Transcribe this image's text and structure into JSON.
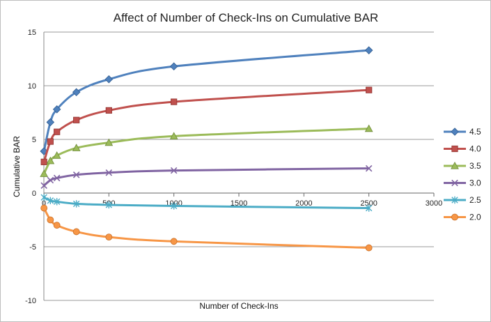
{
  "chart_data": {
    "type": "scatter",
    "title": "Affect of Number of Check-Ins on Cumulative BAR",
    "xlabel": "Number of Check-Ins",
    "ylabel": "Cumulative BAR",
    "xlim": [
      0,
      3000
    ],
    "ylim": [
      -10,
      15
    ],
    "xticks": [
      0,
      500,
      1000,
      1500,
      2000,
      2500,
      3000
    ],
    "yticks": [
      -10,
      -5,
      0,
      5,
      10,
      15
    ],
    "grid": "horizontal",
    "legend_position": "right",
    "smooth_lines": true,
    "series": [
      {
        "name": "4.5",
        "color": "#4f81bd",
        "marker": "diamond",
        "x": [
          1,
          50,
          100,
          250,
          500,
          1000,
          2500
        ],
        "y": [
          3.9,
          6.6,
          7.8,
          9.4,
          10.6,
          11.8,
          13.3
        ]
      },
      {
        "name": "4.0",
        "color": "#c0504d",
        "marker": "square",
        "x": [
          1,
          50,
          100,
          250,
          500,
          1000,
          2500
        ],
        "y": [
          2.9,
          4.8,
          5.7,
          6.8,
          7.7,
          8.5,
          9.6
        ]
      },
      {
        "name": "3.5",
        "color": "#9bbb59",
        "marker": "triangle",
        "x": [
          1,
          50,
          100,
          250,
          500,
          1000,
          2500
        ],
        "y": [
          1.8,
          3.0,
          3.5,
          4.2,
          4.7,
          5.3,
          6.0
        ]
      },
      {
        "name": "3.0",
        "color": "#8064a2",
        "marker": "x",
        "x": [
          1,
          50,
          100,
          250,
          500,
          1000,
          2500
        ],
        "y": [
          0.7,
          1.2,
          1.4,
          1.7,
          1.9,
          2.1,
          2.3
        ]
      },
      {
        "name": "2.5",
        "color": "#4bacc6",
        "marker": "star",
        "x": [
          1,
          50,
          100,
          250,
          500,
          1000,
          2500
        ],
        "y": [
          -0.4,
          -0.7,
          -0.8,
          -1.0,
          -1.1,
          -1.2,
          -1.4
        ]
      },
      {
        "name": "2.0",
        "color": "#f79646",
        "marker": "circle",
        "x": [
          1,
          50,
          100,
          250,
          500,
          1000,
          2500
        ],
        "y": [
          -1.4,
          -2.5,
          -3.0,
          -3.6,
          -4.1,
          -4.5,
          -5.1
        ]
      }
    ]
  }
}
